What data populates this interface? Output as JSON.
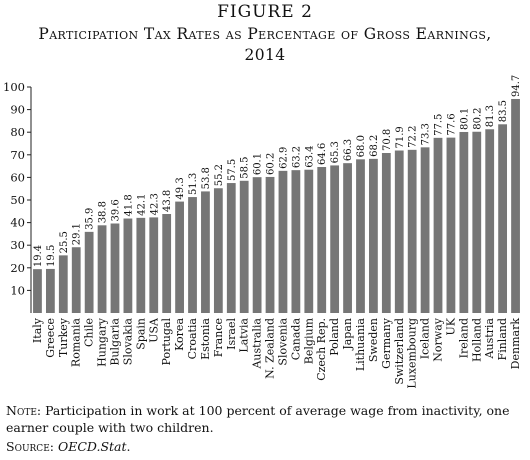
{
  "figure_label": "FIGURE 2",
  "title": "Participation Tax Rates as Percentage of Gross Earnings, 2014",
  "note": {
    "label": "Note",
    "text": ": Participation in work at 100 percent of average wage from inactivity, one earner couple with two children."
  },
  "source": {
    "label": "Source",
    "text": "OECD.Stat",
    "suffix": "."
  },
  "colors": {
    "bar": "#767676",
    "axis": "#222222"
  },
  "chart_data": {
    "type": "bar",
    "title": "Participation Tax Rates as Percentage of Gross Earnings, 2014",
    "xlabel": "",
    "ylabel": "",
    "ylim": [
      0,
      100
    ],
    "yticks": [
      10,
      20,
      30,
      40,
      50,
      60,
      70,
      80,
      90,
      100
    ],
    "grid": false,
    "categories": [
      "Italy",
      "Greece",
      "Turkey",
      "Romania",
      "Chile",
      "Hungary",
      "Bulgaria",
      "Slovakia",
      "Spain",
      "USA",
      "Portugal",
      "Korea",
      "Croatia",
      "Estonia",
      "France",
      "Israel",
      "Latvia",
      "Australia",
      "N. Zealand",
      "Slovenia",
      "Canada",
      "Belgium",
      "Czech Rep.",
      "Poland",
      "Japan",
      "Lithuania",
      "Sweden",
      "Germany",
      "Switzerland",
      "Luxembourg",
      "Iceland",
      "Norway",
      "UK",
      "Ireland",
      "Holland",
      "Austria",
      "Finland",
      "Denmark"
    ],
    "values": [
      19.4,
      19.5,
      25.5,
      29.1,
      35.9,
      38.8,
      39.6,
      41.8,
      42.1,
      42.3,
      43.8,
      49.3,
      51.3,
      53.8,
      55.2,
      57.5,
      58.5,
      60.1,
      60.2,
      62.9,
      63.2,
      63.4,
      64.6,
      65.3,
      66.3,
      68.0,
      68.2,
      70.8,
      71.9,
      72.2,
      73.3,
      77.5,
      77.6,
      80.1,
      80.2,
      81.3,
      83.5,
      94.7
    ],
    "value_labels": [
      "19.4",
      "19.5",
      "25.5",
      "29.1",
      "35.9",
      "38.8",
      "39.6",
      "41.8",
      "42.1",
      "42.3",
      "43.8",
      "49.3",
      "51.3",
      "53.8",
      "55.2",
      "57.5",
      "58.5",
      "60.1",
      "60.2",
      "62.9",
      "63.2",
      "63.4",
      "64.6",
      "65.3",
      "66.3",
      "68.0",
      "68.2",
      "70.8",
      "71.9",
      "72.2",
      "73.3",
      "77.5",
      "77.6",
      "80.1",
      "80.2",
      "81.3",
      "83.5",
      "94.7"
    ]
  }
}
